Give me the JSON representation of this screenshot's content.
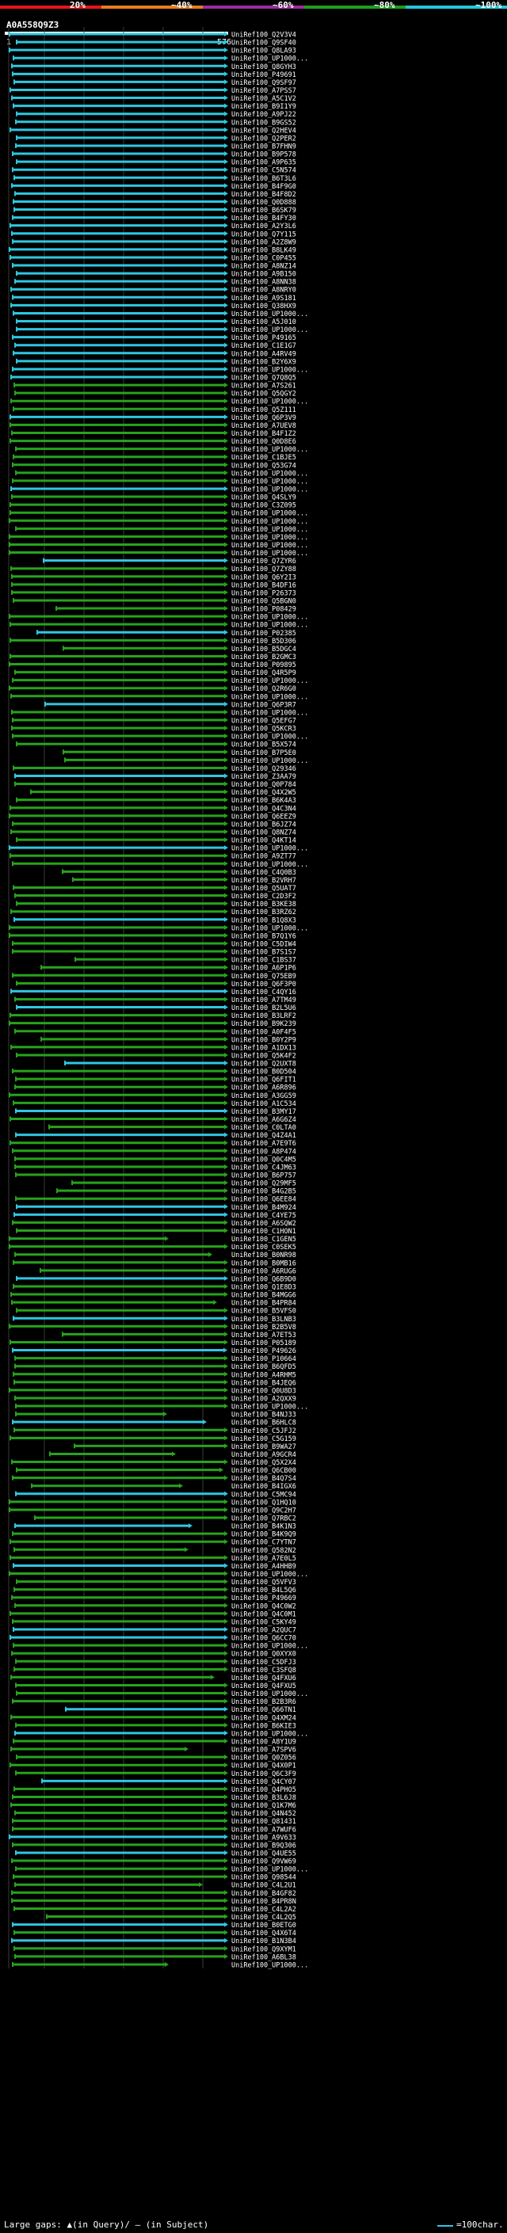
{
  "chart_data": {
    "type": "alignment-overview",
    "query": {
      "name": "A0A558Q9Z3",
      "start": "1",
      "end": "576"
    },
    "identity_legend": [
      {
        "label": "20%",
        "color": "#e8141c"
      },
      {
        "label": "~40%",
        "color": "#e87c1c"
      },
      {
        "label": "~60%",
        "color": "#9c2ca0"
      },
      {
        "label": "~80%",
        "color": "#1e9e1e"
      },
      {
        "label": "~100%",
        "color": "#20c8d8"
      }
    ],
    "colors": {
      "blue": "#2fc7e0",
      "green": "#27a31c",
      "grid": "#3a3a3a"
    },
    "hits": [
      "UniRef100_Q2V3V4",
      "UniRef100_Q9SF40",
      "UniRef100_Q8LA93",
      "UniRef100_UP1000...",
      "UniRef100_Q8GYH3",
      "UniRef100_P49691",
      "UniRef100_Q9SF97",
      "UniRef100_A7PSS7",
      "UniRef100_A5C1V2",
      "UniRef100_B9I1Y9",
      "UniRef100_A9PJ22",
      "UniRef100_B9GS52",
      "UniRef100_Q2HEV4",
      "UniRef100_Q2PER2",
      "UniRef100_B7FHN9",
      "UniRef100_B9P578",
      "UniRef100_A9P635",
      "UniRef100_C5N574",
      "UniRef100_B6T3L6",
      "UniRef100_B4F9G0",
      "UniRef100_B4F8D2",
      "UniRef100_Q0D888",
      "UniRef100_B6SK79",
      "UniRef100_B4FY30",
      "UniRef100_A2Y3L6",
      "UniRef100_Q7Y115",
      "UniRef100_A2Z8W9",
      "UniRef100_B8LK49",
      "UniRef100_C0P455",
      "UniRef100_A8NZ14",
      "UniRef100_A9B150",
      "UniRef100_A8NN38",
      "UniRef100_A8NRY0",
      "UniRef100_A9S181",
      "UniRef100_Q38HX9",
      "UniRef100_UP1000...",
      "UniRef100_A5J010",
      "UniRef100_UP1000...",
      "UniRef100_P49165",
      "UniRef100_C1E1G7",
      "UniRef100_A4RV49",
      "UniRef100_B2Y6X9",
      "UniRef100_UP1000...",
      "UniRef100_Q7Q8Q5",
      "UniRef100_A7S261",
      "UniRef100_Q5QGY2",
      "UniRef100_UP1000...",
      "UniRef100_Q5Z111",
      "UniRef100_Q6P3V9",
      "UniRef100_A7UEV8",
      "UniRef100_B4F1Z2",
      "UniRef100_Q0D8E6",
      "UniRef100_UP1000...",
      "UniRef100_C1BJE5",
      "UniRef100_Q53G74",
      "UniRef100_UP1000...",
      "UniRef100_UP1000...",
      "UniRef100_UP1000...",
      "UniRef100_Q4SLY9",
      "UniRef100_C3Z095",
      "UniRef100_UP1000...",
      "UniRef100_UP1000...",
      "UniRef100_UP1000...",
      "UniRef100_UP1000...",
      "UniRef100_UP1000...",
      "UniRef100_UP1000...",
      "UniRef100_Q7ZYR6",
      "UniRef100_Q7ZY88",
      "UniRef100_Q6Y2I3",
      "UniRef100_B4DF16",
      "UniRef100_P26373",
      "UniRef100_Q5BGN0",
      "UniRef100_P08429",
      "UniRef100_UP1000...",
      "UniRef100_UP1000...",
      "UniRef100_P02385",
      "UniRef100_B5D306",
      "UniRef100_B5DGC4",
      "UniRef100_B2GMC3",
      "UniRef100_P09895",
      "UniRef100_Q4R5P9",
      "UniRef100_UP1000...",
      "UniRef100_Q2R6G0",
      "UniRef100_UP1000...",
      "UniRef100_Q6P3R7",
      "UniRef100_UP1000...",
      "UniRef100_Q5EFG7",
      "UniRef100_Q5KCR3",
      "UniRef100_UP1000...",
      "UniRef100_B5X574",
      "UniRef100_B7P5E0",
      "UniRef100_UP1000...",
      "UniRef100_Q29346",
      "UniRef100_Z3AA79",
      "UniRef100_Q0P784",
      "UniRef100_Q4X2W5",
      "UniRef100_B6K4A3",
      "UniRef100_Q4C3N4",
      "UniRef100_Q6EEZ9",
      "UniRef100_B6JZ74",
      "UniRef100_Q8NZ74",
      "UniRef100_Q4KT14",
      "UniRef100_UP1000...",
      "UniRef100_A9ZT77",
      "UniRef100_UP1000...",
      "UniRef100_C4Q0B3",
      "UniRef100_B2VRH7",
      "UniRef100_Q5UAT7",
      "UniRef100_C2D3F2",
      "UniRef100_B3KE38",
      "UniRef100_B3RZ62",
      "UniRef100_B1Q8X3",
      "UniRef100_UP1000...",
      "UniRef100_B7Q1Y6",
      "UniRef100_C5DIW4",
      "UniRef100_B7S1S7",
      "UniRef100_C1BS37",
      "UniRef100_A6P1P6",
      "UniRef100_Q75EB9",
      "UniRef100_Q6F3P0",
      "UniRef100_C4QY16",
      "UniRef100_A7TM49",
      "UniRef100_B2L5U6",
      "UniRef100_B3LRF2",
      "UniRef100_B9K239",
      "UniRef100_A0F4F5",
      "UniRef100_B0Y2P9",
      "UniRef100_A1DX13",
      "UniRef100_Q5K4F2",
      "UniRef100_Q2UXT8",
      "UniRef100_B0D504",
      "UniRef100_Q6FIT1",
      "UniRef100_A6R896",
      "UniRef100_A3GG59",
      "UniRef100_A1C534",
      "UniRef100_B3MY17",
      "UniRef100_A6G6Z4",
      "UniRef100_C0LTA0",
      "UniRef100_Q4Z4A1",
      "UniRef100_A7E9T6",
      "UniRef100_A8P474",
      "UniRef100_Q0C4M5",
      "UniRef100_C4JM63",
      "UniRef100_B6P757",
      "UniRef100_Q29MF5",
      "UniRef100_B4G2B5",
      "UniRef100_Q6EE84",
      "UniRef100_B4M924",
      "UniRef100_C4YE75",
      "UniRef100_A6SQW2",
      "UniRef100_C1HON1",
      "UniRef100_C1GEN5",
      "UniRef100_C0SEK5",
      "UniRef100_B0NR98",
      "UniRef100_B0MB16",
      "UniRef100_A6RUG6",
      "UniRef100_Q6B9D0",
      "UniRef100_Q1E8D3",
      "UniRef100_B4MGG6",
      "UniRef100_B4PR84",
      "UniRef100_B5VFS0",
      "UniRef100_B3LNB3",
      "UniRef100_B2B5V8",
      "UniRef100_A7ET53",
      "UniRef100_P05189",
      "UniRef100_P49626",
      "UniRef100_P10664",
      "UniRef100_B6QFD5",
      "UniRef100_A4RHM5",
      "UniRef100_B4JEQ6",
      "UniRef100_Q0U8D3",
      "UniRef100_A2QXX9",
      "UniRef100_UP1000...",
      "UniRef100_B4NJ33",
      "UniRef100_B6HLC8",
      "UniRef100_C5JFJ2",
      "UniRef100_C5G159",
      "UniRef100_B9WA27",
      "UniRef100_A9GCR4",
      "UniRef100_Q5X2X4",
      "UniRef100_Q6CB00",
      "UniRef100_B4Q7S4",
      "UniRef100_B4IGX6",
      "UniRef100_C5MC94",
      "UniRef100_Q1HQ10",
      "UniRef100_Q9C2H7",
      "UniRef100_Q7RBC2",
      "UniRef100_B4K1N3",
      "UniRef100_B4K9Q9",
      "UniRef100_C7YTN7",
      "UniRef100_Q582N2",
      "UniRef100_A7E0L5",
      "UniRef100_A4HHB9",
      "UniRef100_UP1000...",
      "UniRef100_Q5VFV3",
      "UniRef100_B4L5Q6",
      "UniRef100_P49669",
      "UniRef100_Q4C0W2",
      "UniRef100_Q4C0M1",
      "UniRef100_C5KY49",
      "UniRef100_A2QUC7",
      "UniRef100_Q6CC70",
      "UniRef100_UP1000...",
      "UniRef100_Q0XYX0",
      "UniRef100_C5DFJ3",
      "UniRef100_C3SFQ8",
      "UniRef100_Q4FXU6",
      "UniRef100_Q4FXU5",
      "UniRef100_UP1000...",
      "UniRef100_B2B3R6",
      "UniRef100_Q66TN1",
      "UniRef100_Q4XM24",
      "UniRef100_B6KIE3",
      "UniRef100_UP1000...",
      "UniRef100_A8Y1U9",
      "UniRef100_A7SPV6",
      "UniRef100_Q0Z056",
      "UniRef100_Q4X0P1",
      "UniRef100_Q6C3F9",
      "UniRef100_Q4CY07",
      "UniRef100_Q4PHO5",
      "UniRef100_B3L6J8",
      "UniRef100_Q1K7M6",
      "UniRef100_Q4N452",
      "UniRef100_Q81431",
      "UniRef100_A7WUF6",
      "UniRef100_A9V633",
      "UniRef100_B9Q306",
      "UniRef100_Q4UE55",
      "UniRef100_Q9VW69",
      "UniRef100_UP1000...",
      "UniRef100_Q98544",
      "UniRef100_C4L2U1",
      "UniRef100_B4GF82",
      "UniRef100_B4PR8N",
      "UniRef100_C4L2A2",
      "UniRef100_C4L2Q5",
      "UniRef100_B0ETG0",
      "UniRef100_Q4X6T4",
      "UniRef100_B1N3B4",
      "UniRef100_Q9XYM1",
      "UniRef100_A6BL38",
      "UniRef100_UP1000..."
    ],
    "footer": {
      "left": "Large gaps: ▲(in Query)/ – (in Subject)",
      "right": "=100char."
    }
  }
}
